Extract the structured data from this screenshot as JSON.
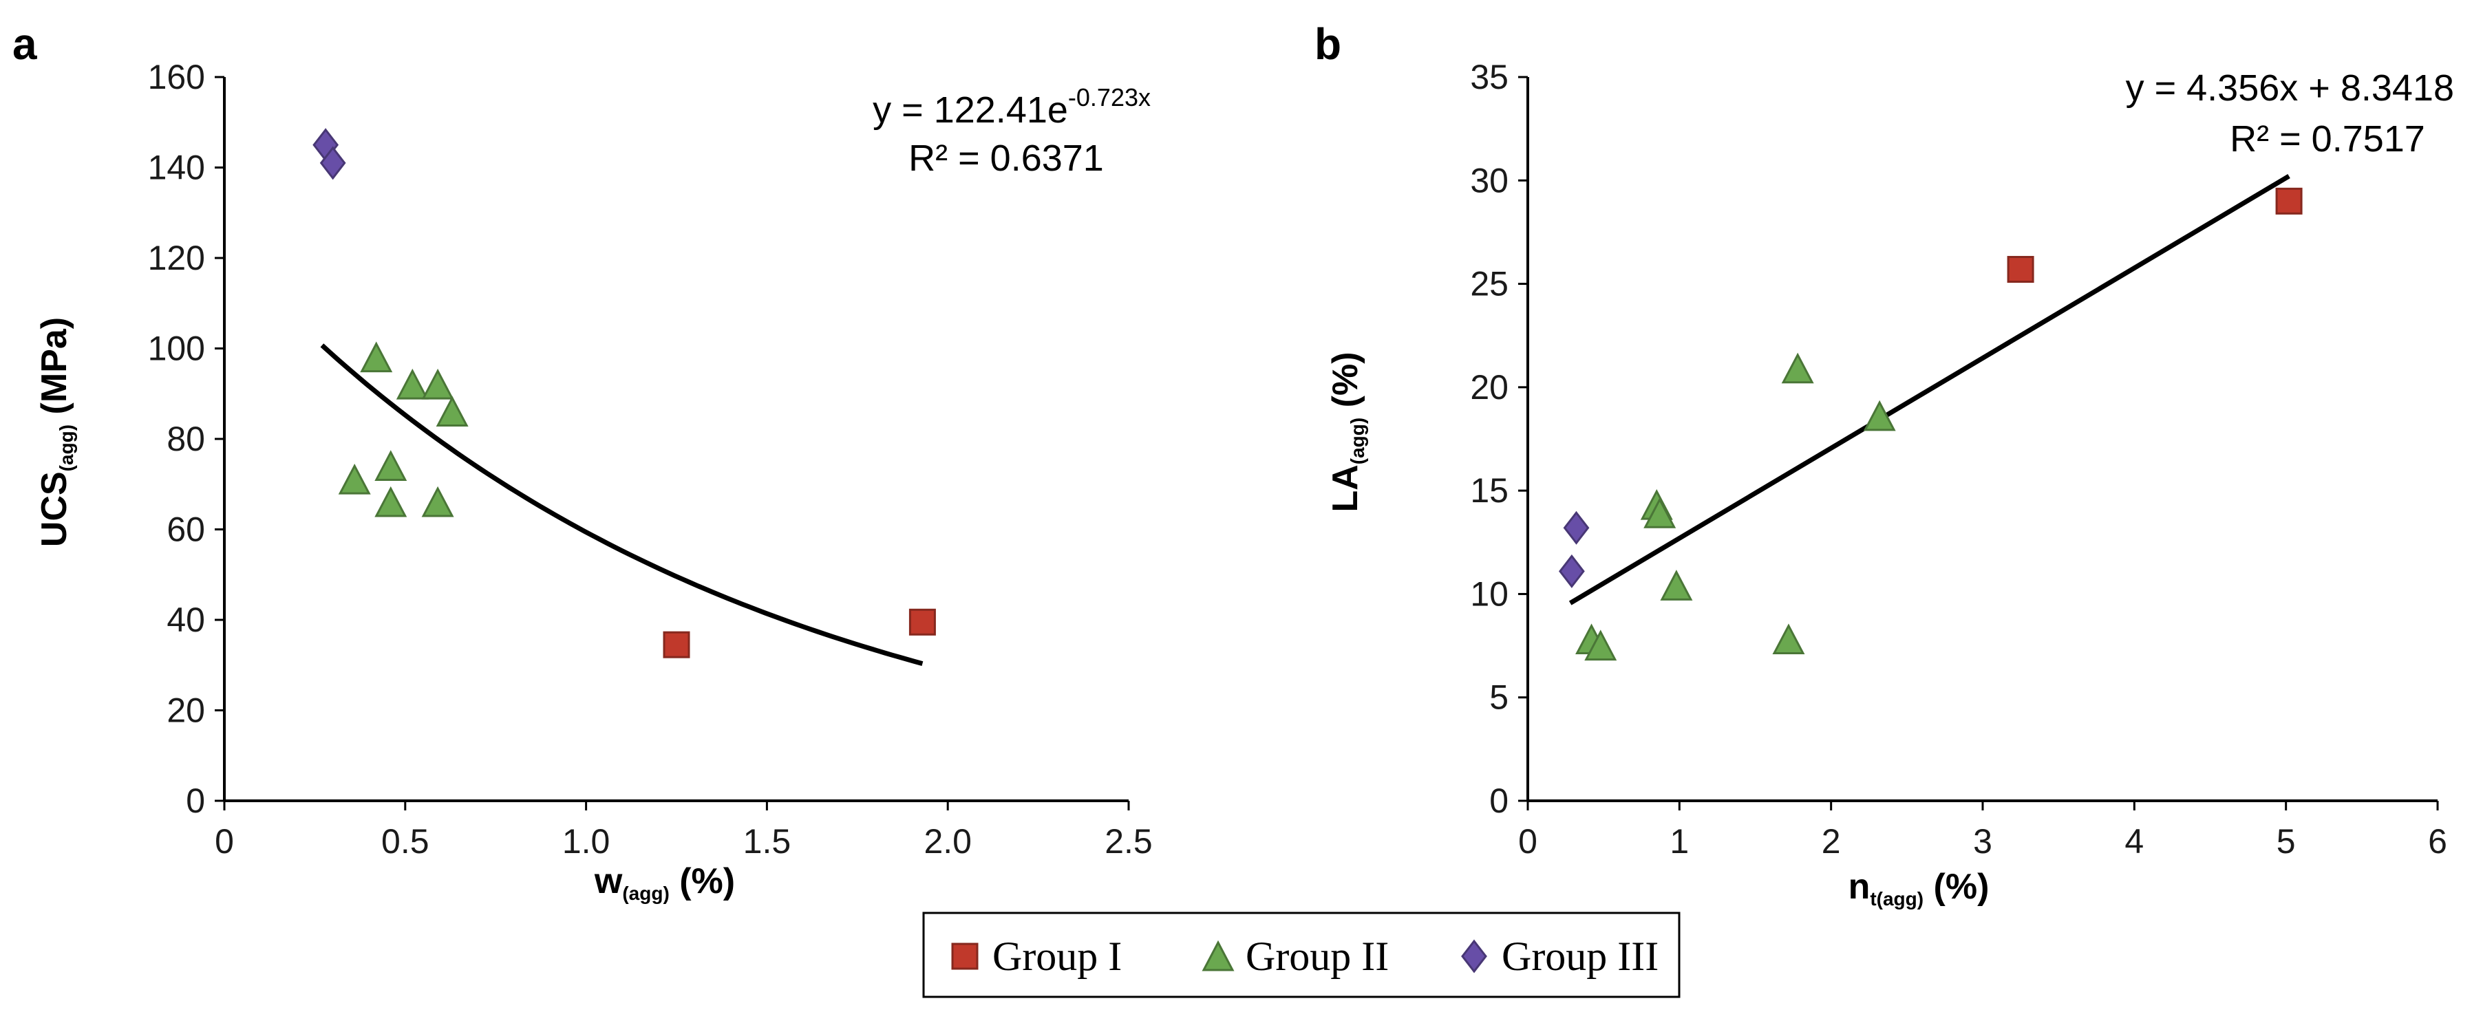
{
  "legend": [
    {
      "label": "Group I",
      "marker": "square",
      "color": "#c0392b"
    },
    {
      "label": "Group II",
      "marker": "triangle",
      "color": "#6aa84f"
    },
    {
      "label": "Group III",
      "marker": "diamond",
      "color": "#674ea7"
    }
  ],
  "chart_data": [
    {
      "panel": "a",
      "type": "scatter",
      "xlabel": "w",
      "xlabel_sub": "(agg)",
      "xlabel_suffix": " (%)",
      "ylabel": "UCS",
      "ylabel_sub": "(agg)",
      "ylabel_suffix": " (MPa)",
      "xlim": [
        0,
        2.5
      ],
      "ylim": [
        0,
        160
      ],
      "xticks": [
        0,
        0.5,
        1.0,
        1.5,
        2.0,
        2.5
      ],
      "xtick_labels": [
        "0",
        "0.5",
        "1.0",
        "1.5",
        "2.0",
        "2.5"
      ],
      "yticks": [
        0,
        20,
        40,
        60,
        80,
        100,
        120,
        140,
        160
      ],
      "ytick_labels": [
        "0",
        "20",
        "40",
        "60",
        "80",
        "100",
        "120",
        "140",
        "160"
      ],
      "series": [
        {
          "name": "Group I",
          "points": [
            [
              1.25,
              34.5
            ],
            [
              1.93,
              39.5
            ]
          ]
        },
        {
          "name": "Group II",
          "points": [
            [
              0.42,
              98
            ],
            [
              0.52,
              92
            ],
            [
              0.59,
              92
            ],
            [
              0.63,
              86
            ],
            [
              0.36,
              71
            ],
            [
              0.46,
              74
            ],
            [
              0.46,
              66
            ],
            [
              0.59,
              66
            ]
          ]
        },
        {
          "name": "Group III",
          "points": [
            [
              0.28,
              145
            ],
            [
              0.3,
              141
            ]
          ]
        }
      ],
      "trendline": {
        "type": "exponential",
        "a": 122.41,
        "b": -0.723,
        "x_range": [
          0.27,
          1.93
        ]
      },
      "equation_main": "y = 122.41e",
      "equation_exp": "-0.723x",
      "r2": "R² = 0.6371"
    },
    {
      "panel": "b",
      "type": "scatter",
      "xlabel": "n",
      "xlabel_sub": "t(agg)",
      "xlabel_suffix": " (%)",
      "ylabel": "LA",
      "ylabel_sub": "(agg)",
      "ylabel_suffix": " (%)",
      "xlim": [
        0,
        6
      ],
      "ylim": [
        0,
        35
      ],
      "xticks": [
        0,
        1,
        2,
        3,
        4,
        5,
        6
      ],
      "xtick_labels": [
        "0",
        "1",
        "2",
        "3",
        "4",
        "5",
        "6"
      ],
      "yticks": [
        0,
        5,
        10,
        15,
        20,
        25,
        30,
        35
      ],
      "ytick_labels": [
        "0",
        "5",
        "10",
        "15",
        "20",
        "25",
        "30",
        "35"
      ],
      "series": [
        {
          "name": "Group I",
          "points": [
            [
              3.25,
              25.7
            ],
            [
              5.02,
              29.0
            ]
          ]
        },
        {
          "name": "Group II",
          "points": [
            [
              1.78,
              20.9
            ],
            [
              2.32,
              18.6
            ],
            [
              0.85,
              14.3
            ],
            [
              0.87,
              13.9
            ],
            [
              0.98,
              10.4
            ],
            [
              0.42,
              7.8
            ],
            [
              0.48,
              7.5
            ],
            [
              1.72,
              7.8
            ]
          ]
        },
        {
          "name": "Group III",
          "points": [
            [
              0.32,
              13.2
            ],
            [
              0.29,
              11.1
            ]
          ]
        }
      ],
      "trendline": {
        "type": "linear",
        "m": 4.356,
        "c": 8.3418,
        "x_range": [
          0.28,
          5.02
        ]
      },
      "equation_main": "y = 4.356x + 8.3418",
      "r2": "R² = 0.7517"
    }
  ]
}
